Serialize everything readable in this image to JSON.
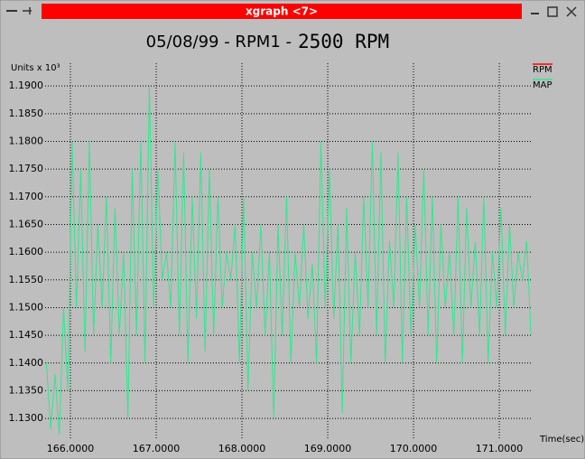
{
  "window": {
    "title": "xgraph <7>"
  },
  "chart_data": {
    "type": "line",
    "title": "05/08/99 - RPM1 -",
    "subtitle": "2500 RPM",
    "ylabel": "Units x 10³",
    "xlabel": "Time(sec)",
    "grid": true,
    "legend": "top-right",
    "xlim": [
      165.705,
      171.389
    ],
    "ylim": [
      1.1261,
      1.1928
    ],
    "xticks": [
      {
        "value": 166,
        "label": "166.0000"
      },
      {
        "value": 167,
        "label": "167.0000"
      },
      {
        "value": 168,
        "label": "168.0000"
      },
      {
        "value": 169,
        "label": "169.0000"
      },
      {
        "value": 170,
        "label": "170.0000"
      },
      {
        "value": 171,
        "label": "171.0000"
      }
    ],
    "yticks": [
      {
        "value": 1.13,
        "label": "1.1300"
      },
      {
        "value": 1.135,
        "label": "1.1350"
      },
      {
        "value": 1.14,
        "label": "1.1400"
      },
      {
        "value": 1.145,
        "label": "1.1450"
      },
      {
        "value": 1.15,
        "label": "1.1500"
      },
      {
        "value": 1.155,
        "label": "1.1550"
      },
      {
        "value": 1.16,
        "label": "1.1600"
      },
      {
        "value": 1.165,
        "label": "1.1650"
      },
      {
        "value": 1.17,
        "label": "1.1700"
      },
      {
        "value": 1.175,
        "label": "1.1750"
      },
      {
        "value": 1.18,
        "label": "1.1800"
      },
      {
        "value": 1.185,
        "label": "1.1850"
      },
      {
        "value": 1.19,
        "label": "1.1900"
      }
    ],
    "x": [
      165.72,
      165.77,
      165.82,
      165.87,
      165.92,
      165.97,
      166.02,
      166.07,
      166.12,
      166.17,
      166.22,
      166.27,
      166.32,
      166.37,
      166.42,
      166.47,
      166.52,
      166.57,
      166.62,
      166.67,
      166.72,
      166.77,
      166.82,
      166.87,
      166.92,
      166.97,
      167.02,
      167.07,
      167.12,
      167.17,
      167.22,
      167.27,
      167.32,
      167.37,
      167.42,
      167.47,
      167.52,
      167.57,
      167.62,
      167.67,
      167.72,
      167.77,
      167.82,
      167.87,
      167.92,
      167.97,
      168.02,
      168.07,
      168.12,
      168.17,
      168.22,
      168.27,
      168.32,
      168.37,
      168.42,
      168.47,
      168.52,
      168.57,
      168.62,
      168.67,
      168.72,
      168.77,
      168.82,
      168.87,
      168.92,
      168.97,
      169.02,
      169.07,
      169.12,
      169.17,
      169.22,
      169.27,
      169.32,
      169.37,
      169.42,
      169.47,
      169.52,
      169.57,
      169.62,
      169.67,
      169.72,
      169.77,
      169.82,
      169.87,
      169.92,
      169.97,
      170.02,
      170.07,
      170.12,
      170.17,
      170.22,
      170.27,
      170.32,
      170.37,
      170.42,
      170.47,
      170.52,
      170.57,
      170.62,
      170.67,
      170.72,
      170.77,
      170.82,
      170.87,
      170.92,
      170.97,
      171.02,
      171.07,
      171.12,
      171.17,
      171.22,
      171.27,
      171.32,
      171.37
    ],
    "series": [
      {
        "name": "RPM",
        "color": "#ff0000",
        "values": [
          null,
          null,
          null,
          null,
          null,
          null,
          null,
          null,
          null,
          null,
          null,
          null,
          null,
          null,
          null,
          null,
          null,
          null,
          null,
          null,
          null,
          null,
          null,
          null,
          null,
          null,
          null,
          null,
          null,
          null,
          null,
          null,
          null,
          null,
          null,
          null,
          null,
          null,
          null,
          null,
          null,
          null,
          null,
          null,
          null,
          null,
          null,
          null,
          null,
          null,
          null,
          null,
          null,
          null,
          null,
          null,
          null,
          null,
          null,
          null,
          null,
          null,
          null,
          null,
          null,
          null,
          null,
          null,
          null,
          null,
          null,
          null,
          null,
          null,
          null,
          null,
          null,
          null,
          null,
          null,
          null,
          null,
          null,
          null,
          null,
          null,
          null,
          null,
          null,
          null,
          null,
          null,
          null,
          null,
          null,
          null,
          null,
          null,
          null,
          null,
          null,
          null,
          null,
          null,
          null,
          null,
          null,
          null,
          null,
          null,
          null,
          null,
          null,
          null
        ]
      },
      {
        "name": "MAP",
        "color": "#30e890",
        "values": [
          1.14,
          1.128,
          1.138,
          1.127,
          1.15,
          1.135,
          1.18,
          1.15,
          1.175,
          1.142,
          1.18,
          1.145,
          1.165,
          1.15,
          1.17,
          1.14,
          1.168,
          1.145,
          1.16,
          1.13,
          1.175,
          1.145,
          1.18,
          1.14,
          1.19,
          1.15,
          1.175,
          1.155,
          1.16,
          1.15,
          1.18,
          1.145,
          1.178,
          1.14,
          1.17,
          1.148,
          1.178,
          1.142,
          1.175,
          1.145,
          1.17,
          1.15,
          1.16,
          1.155,
          1.165,
          1.14,
          1.17,
          1.135,
          1.16,
          1.15,
          1.165,
          1.145,
          1.16,
          1.13,
          1.165,
          1.145,
          1.17,
          1.14,
          1.16,
          1.15,
          1.165,
          1.148,
          1.158,
          1.14,
          1.18,
          1.15,
          1.175,
          1.148,
          1.165,
          1.131,
          1.168,
          1.14,
          1.16,
          1.145,
          1.17,
          1.15,
          1.18,
          1.145,
          1.178,
          1.14,
          1.162,
          1.15,
          1.178,
          1.14,
          1.17,
          1.145,
          1.165,
          1.15,
          1.175,
          1.145,
          1.17,
          1.14,
          1.165,
          1.15,
          1.16,
          1.145,
          1.17,
          1.14,
          1.168,
          1.15,
          1.162,
          1.145,
          1.17,
          1.14,
          1.16,
          1.15,
          1.168,
          1.145,
          1.165,
          1.15,
          1.16,
          1.155,
          1.162,
          1.145
        ]
      }
    ]
  }
}
